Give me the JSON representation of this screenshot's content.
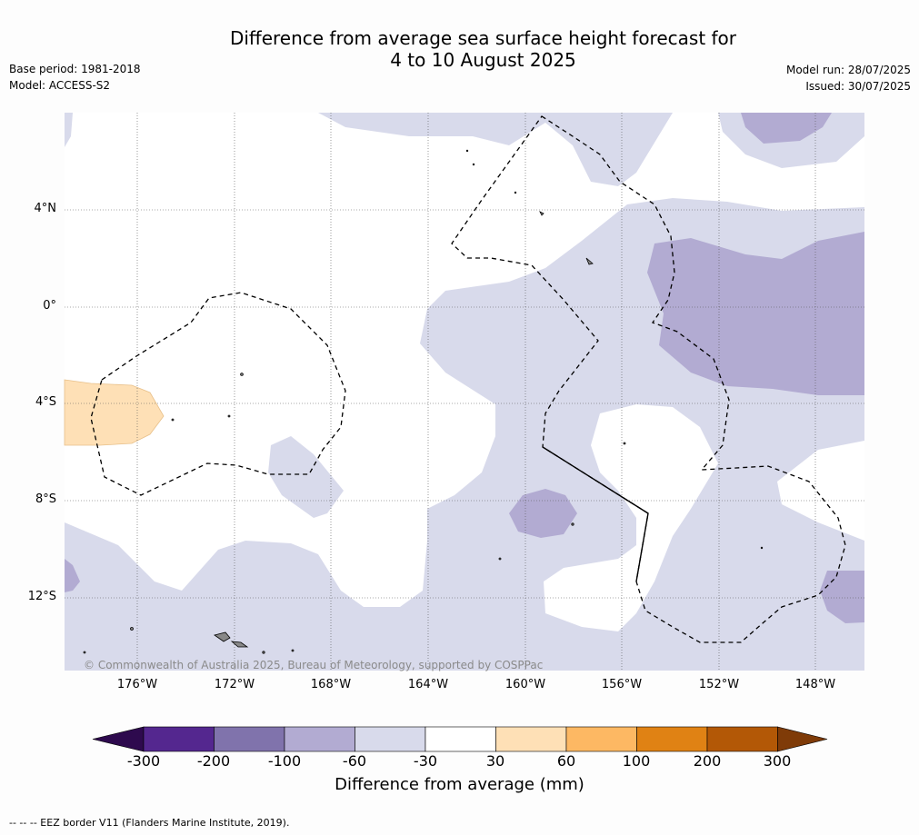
{
  "title": "Difference from average sea surface height forecast for\n4 to 10 August 2025",
  "title_line1": "Difference from average sea surface height forecast for",
  "title_line2": "4 to 10 August 2025",
  "meta": {
    "base_period": "Base period: 1981-2018",
    "model": "Model: ACCESS-S2",
    "model_run": "Model run: 28/07/2025",
    "issued": "Issued: 30/07/2025"
  },
  "lat_ticks": [
    "4°N",
    "0°",
    "4°S",
    "8°S",
    "12°S"
  ],
  "lon_ticks": [
    "176°W",
    "172°W",
    "168°W",
    "164°W",
    "160°W",
    "156°W",
    "152°W",
    "148°W"
  ],
  "copyright": "© Commonwealth of Australia 2025, Bureau of Meteorology, supported by COSPPac",
  "colorbar": {
    "label": "Difference from average (mm)",
    "ticks": [
      "-300",
      "-200",
      "-100",
      "-60",
      "-30",
      "30",
      "60",
      "100",
      "200",
      "300"
    ],
    "colors": [
      "#2e0a4e",
      "#54278f",
      "#8073ac",
      "#b2abd2",
      "#d8daeb",
      "#ffffff",
      "#fee0b6",
      "#fdb863",
      "#e08214",
      "#b35806",
      "#7f3b08"
    ]
  },
  "footer": "--  --  -- EEZ border V11 (Flanders Marine Institute, 2019).",
  "colors": {
    "light_purple": "#d8daeb",
    "mid_purple": "#b2abd2",
    "light_orange": "#fee0b6"
  }
}
